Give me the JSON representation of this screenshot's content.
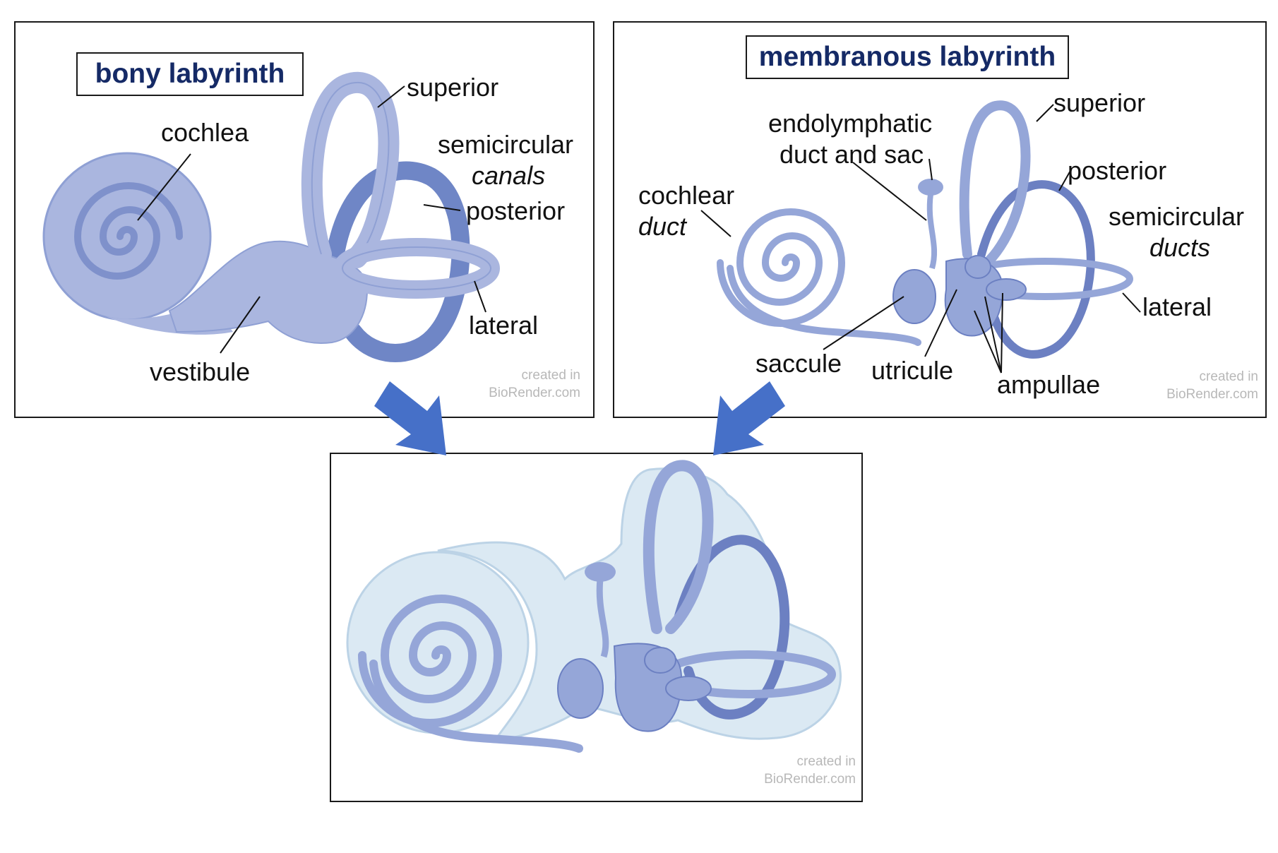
{
  "colors": {
    "title_text": "#152a66",
    "bone_fill": "#aab6df",
    "bone_dark": "#7f91cb",
    "bone_darker": "#5f77b8",
    "duct_fill": "#95a6d8",
    "duct_stroke": "#6c80c2",
    "halo_fill": "#dbe9f3",
    "halo_stroke": "#bcd3e6",
    "arrow": "#4670c8",
    "credit": "#b8b8b8"
  },
  "panels": {
    "bony": {
      "title": "bony labyrinth",
      "labels": {
        "cochlea": "cochlea",
        "superior": "superior",
        "semicircular": "semicircular",
        "canals": "canals",
        "posterior": "posterior",
        "lateral": "lateral",
        "vestibule": "vestibule"
      },
      "credit": [
        "created in",
        "BioRender.com"
      ]
    },
    "membranous": {
      "title": "membranous labyrinth",
      "labels": {
        "endolymphatic_1": "endolymphatic",
        "endolymphatic_2": "duct and sac",
        "superior": "superior",
        "posterior": "posterior",
        "cochlear": "cochlear",
        "duct": "duct",
        "semicircular": "semicircular",
        "ducts": "ducts",
        "lateral": "lateral",
        "saccule": "saccule",
        "utricule": "utricule",
        "ampullae": "ampullae"
      },
      "credit": [
        "created in",
        "BioRender.com"
      ]
    },
    "combined": {
      "credit": [
        "created in",
        "BioRender.com"
      ]
    }
  },
  "icons": [
    "down-right-arrow-icon",
    "down-left-arrow-icon"
  ]
}
